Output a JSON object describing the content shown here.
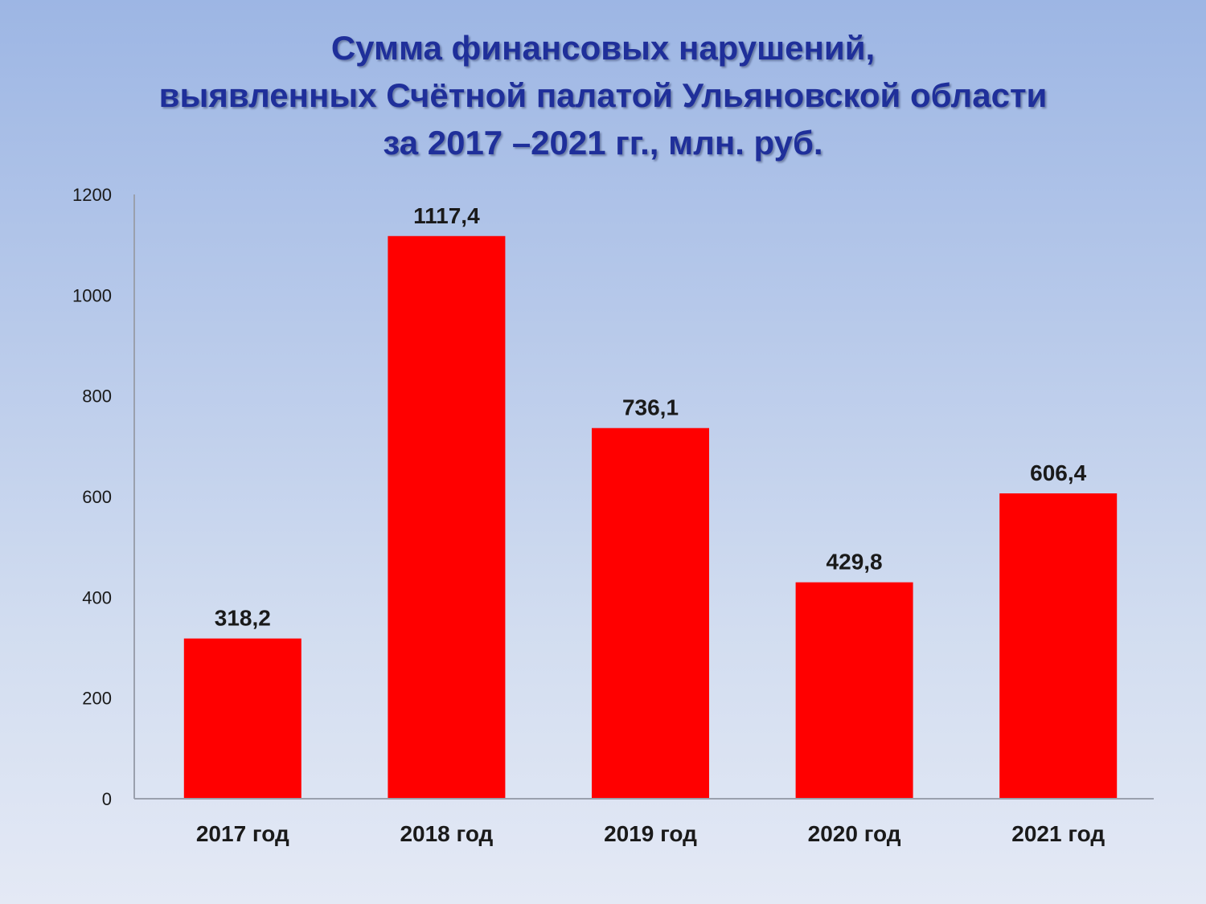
{
  "title": {
    "line1": "Сумма финансовых нарушений,",
    "line2": "выявленных Счётной палатой Ульяновской области",
    "line3": "за 2017 –2021 гг., млн. руб."
  },
  "colors": {
    "bar": "#ff0000",
    "title": "#1f2f9a",
    "axis": "#9aa0ad"
  },
  "chart_data": {
    "type": "bar",
    "title": "Сумма финансовых нарушений, выявленных Счётной палатой Ульяновской области за 2017 –2021 гг., млн. руб.",
    "categories": [
      "2017 год",
      "2018 год",
      "2019 год",
      "2020 год",
      "2021 год"
    ],
    "values": [
      318.2,
      1117.4,
      736.1,
      429.8,
      606.4
    ],
    "data_labels": [
      "318,2",
      "1117,4",
      "736,1",
      "429,8",
      "606,4"
    ],
    "yticks": [
      "0",
      "200",
      "400",
      "600",
      "800",
      "1000",
      "1200"
    ],
    "ylim": [
      0,
      1200
    ],
    "xlabel": "",
    "ylabel": "",
    "grid": false,
    "legend": "none"
  }
}
